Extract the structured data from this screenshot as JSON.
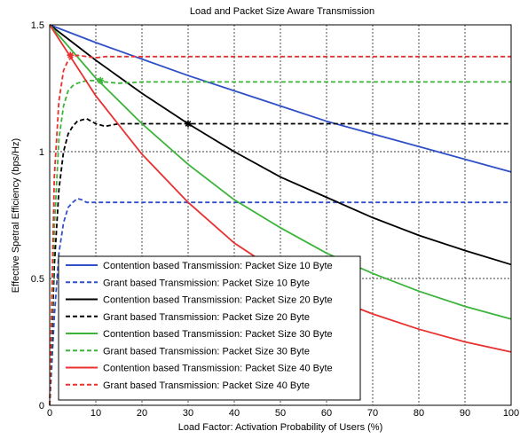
{
  "chart_data": {
    "type": "line",
    "title": "Load and Packet Size Aware Transmission",
    "xlabel": "Load Factor: Activation Probability of Users (%)",
    "ylabel": "Effective Spetral Efficiency (bps/Hz)",
    "xlim": [
      0,
      100
    ],
    "ylim": [
      0,
      1.5
    ],
    "xticks": [
      "0",
      "10",
      "20",
      "30",
      "40",
      "50",
      "60",
      "70",
      "80",
      "90",
      "100"
    ],
    "yticks": [
      "0",
      "0.5",
      "1",
      "1.5"
    ],
    "grid": true,
    "legend_position": "bottom-left",
    "series": [
      {
        "name": "Contention based Transmission: Packet Size 10 Byte",
        "color": "#3050c8",
        "dash": "solid",
        "x": [
          0,
          10,
          20,
          30,
          40,
          50,
          60,
          70,
          80,
          90,
          100
        ],
        "y": [
          1.5,
          1.43,
          1.365,
          1.3,
          1.24,
          1.18,
          1.12,
          1.07,
          1.02,
          0.97,
          0.92
        ]
      },
      {
        "name": "Grant based Transmission: Packet Size 10 Byte",
        "color": "#3050c8",
        "dash": "dashed",
        "x": [
          0,
          1,
          2,
          3,
          4,
          5,
          6,
          7,
          8,
          10,
          20,
          30,
          40,
          50,
          60,
          70,
          80,
          90,
          100
        ],
        "y": [
          0,
          0.35,
          0.6,
          0.72,
          0.78,
          0.8,
          0.815,
          0.81,
          0.8,
          0.8,
          0.8,
          0.8,
          0.8,
          0.8,
          0.8,
          0.8,
          0.8,
          0.8,
          0.8
        ]
      },
      {
        "name": "Contention based Transmission: Packet Size 20 Byte",
        "color": "#000000",
        "dash": "solid",
        "x": [
          0,
          10,
          20,
          30,
          40,
          50,
          60,
          70,
          80,
          90,
          100
        ],
        "y": [
          1.5,
          1.36,
          1.23,
          1.11,
          1.0,
          0.9,
          0.82,
          0.74,
          0.67,
          0.61,
          0.555
        ]
      },
      {
        "name": "Grant based Transmission: Packet Size 20 Byte",
        "color": "#000000",
        "dash": "dashed",
        "x": [
          0,
          1,
          2,
          3,
          4,
          5,
          6,
          8,
          10,
          12,
          15,
          20,
          30,
          40,
          50,
          60,
          70,
          80,
          90,
          100
        ],
        "y": [
          0,
          0.55,
          0.85,
          1.0,
          1.07,
          1.1,
          1.12,
          1.13,
          1.11,
          1.1,
          1.11,
          1.11,
          1.11,
          1.11,
          1.11,
          1.11,
          1.11,
          1.11,
          1.11,
          1.11
        ]
      },
      {
        "name": "Contention based Transmission: Packet Size 30 Byte",
        "color": "#3cb43c",
        "dash": "solid",
        "x": [
          0,
          10,
          20,
          30,
          40,
          50,
          60,
          70,
          80,
          90,
          100
        ],
        "y": [
          1.5,
          1.29,
          1.11,
          0.95,
          0.81,
          0.7,
          0.6,
          0.52,
          0.45,
          0.39,
          0.34
        ]
      },
      {
        "name": "Grant based Transmission: Packet Size 30 Byte",
        "color": "#3cb43c",
        "dash": "dashed",
        "x": [
          0,
          1,
          2,
          3,
          4,
          5,
          6,
          8,
          10,
          12,
          15,
          20,
          30,
          40,
          50,
          60,
          70,
          80,
          90,
          100
        ],
        "y": [
          0,
          0.7,
          1.05,
          1.18,
          1.24,
          1.26,
          1.27,
          1.28,
          1.28,
          1.275,
          1.27,
          1.275,
          1.275,
          1.275,
          1.275,
          1.275,
          1.275,
          1.275,
          1.275,
          1.275
        ]
      },
      {
        "name": "Contention based Transmission: Packet Size 40 Byte",
        "color": "#e83030",
        "dash": "solid",
        "x": [
          0,
          10,
          20,
          30,
          40,
          50,
          60,
          70,
          80,
          90,
          100
        ],
        "y": [
          1.5,
          1.22,
          0.99,
          0.8,
          0.64,
          0.52,
          0.43,
          0.36,
          0.3,
          0.25,
          0.21
        ]
      },
      {
        "name": "Grant based Transmission: Packet Size 40 Byte",
        "color": "#e83030",
        "dash": "dashed",
        "x": [
          0,
          1,
          2,
          3,
          4,
          5,
          6,
          8,
          10,
          12,
          15,
          20,
          30,
          40,
          50,
          60,
          70,
          80,
          90,
          100
        ],
        "y": [
          0,
          0.9,
          1.2,
          1.32,
          1.36,
          1.375,
          1.38,
          1.375,
          1.37,
          1.375,
          1.375,
          1.375,
          1.375,
          1.375,
          1.375,
          1.375,
          1.375,
          1.375,
          1.375,
          1.375
        ]
      }
    ],
    "markers": [
      {
        "x": 4.5,
        "y": 1.38,
        "color": "#e83030",
        "symbol": "*"
      },
      {
        "x": 11,
        "y": 1.28,
        "color": "#3cb43c",
        "symbol": "*"
      },
      {
        "x": 30,
        "y": 1.11,
        "color": "#000000",
        "symbol": "*"
      }
    ]
  }
}
